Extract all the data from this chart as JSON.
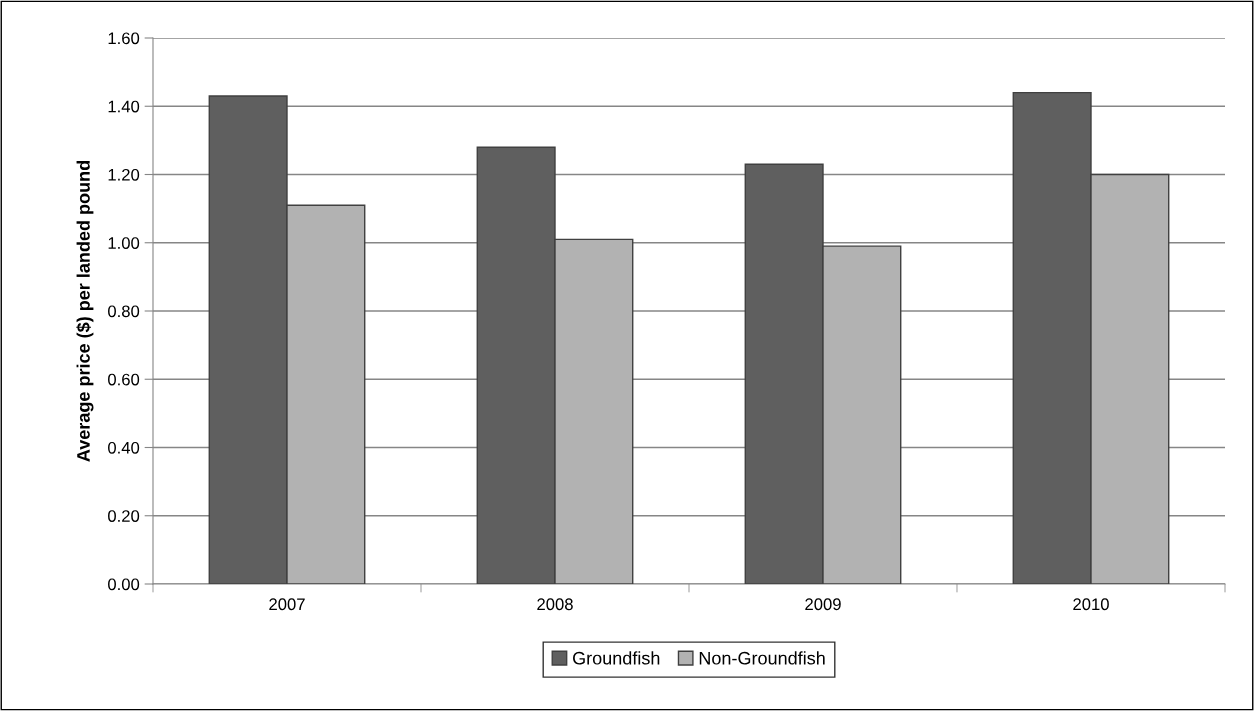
{
  "chart_data": {
    "type": "bar",
    "ylabel": "Average price ($) per landed pound",
    "categories": [
      "2007",
      "2008",
      "2009",
      "2010"
    ],
    "series": [
      {
        "name": "Groundfish",
        "color": "#5f5f5f",
        "values": [
          1.43,
          1.28,
          1.23,
          1.44
        ]
      },
      {
        "name": "Non-Groundfish",
        "color": "#b2b2b2",
        "values": [
          1.11,
          1.01,
          0.99,
          1.2
        ]
      }
    ],
    "ylim": [
      0,
      1.6
    ],
    "yticks": [
      {
        "value": 0,
        "label": "0.00"
      },
      {
        "value": 0.2,
        "label": "0.20"
      },
      {
        "value": 0.4,
        "label": "0.40"
      },
      {
        "value": 0.6,
        "label": "0.60"
      },
      {
        "value": 0.8,
        "label": "0.80"
      },
      {
        "value": 1.0,
        "label": "1.00"
      },
      {
        "value": 1.2,
        "label": "1.20"
      },
      {
        "value": 1.4,
        "label": "1.40"
      },
      {
        "value": 1.6,
        "label": "1.60"
      }
    ],
    "grid": "y",
    "legend": "bottom"
  }
}
